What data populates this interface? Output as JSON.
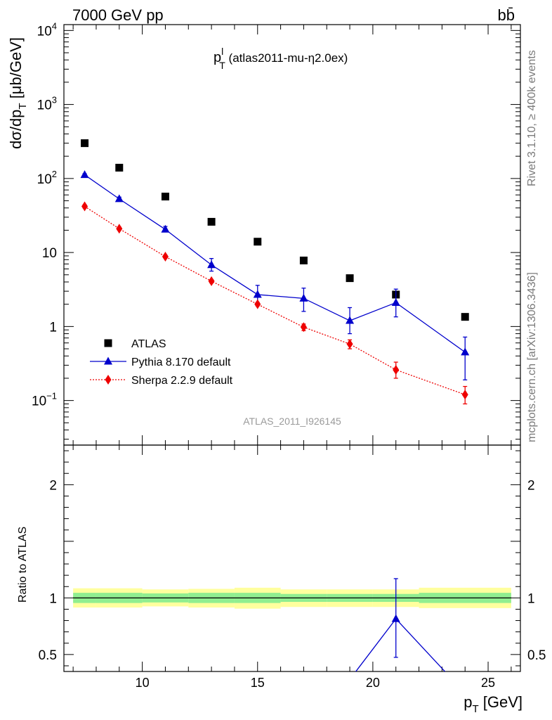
{
  "header": {
    "left": "7000 GeV pp",
    "right": "bb̄"
  },
  "side_labels": {
    "top": "Rivet 3.1.10, ≥ 400k events",
    "bottom": "mcplots.cern.ch [arXiv:1306.3436]"
  },
  "chart_data": [
    {
      "type": "line",
      "title_main": "p",
      "title_sup": "l",
      "title_sub": "T",
      "title_rest": " (atlas2011-mu-η2.0ex)",
      "ylabel_main": "dσ/dp",
      "ylabel_sub": "T",
      "ylabel_rest": " [μb/GeV]",
      "yscale": "log",
      "ylim": [
        0.025,
        12000
      ],
      "xlim": [
        6.6,
        26.4
      ],
      "ref_label": "ATLAS_2011_I926145",
      "yticks": [
        {
          "v": 0.1,
          "base": "10",
          "exp": "−1"
        },
        {
          "v": 1,
          "base": "1",
          "exp": ""
        },
        {
          "v": 10,
          "base": "10",
          "exp": ""
        },
        {
          "v": 100,
          "base": "10",
          "exp": "2"
        },
        {
          "v": 1000,
          "base": "10",
          "exp": "3"
        },
        {
          "v": 10000,
          "base": "10",
          "exp": "4"
        }
      ],
      "legend": {
        "position": "bottom-left",
        "entries": [
          "ATLAS",
          "Pythia 8.170 default",
          "Sherpa 2.2.9 default"
        ]
      },
      "series": [
        {
          "name": "ATLAS",
          "color": "#000000",
          "marker": "square",
          "style": "points",
          "x": [
            7.5,
            9,
            11,
            13,
            15,
            17,
            19,
            21,
            24
          ],
          "y": [
            300,
            140,
            57,
            26,
            14,
            7.8,
            4.5,
            2.7,
            1.35
          ]
        },
        {
          "name": "Pythia 8.170 default",
          "color": "#0000cc",
          "marker": "triangle",
          "style": "solid",
          "x": [
            7.5,
            9,
            11,
            13,
            15,
            17,
            19,
            21,
            24
          ],
          "y": [
            112,
            53,
            20.5,
            6.8,
            2.7,
            2.4,
            1.2,
            2.1,
            0.45
          ],
          "err_lo": [
            108,
            50,
            19,
            5.6,
            2.1,
            1.6,
            0.8,
            1.35,
            0.19
          ],
          "err_hi": [
            116,
            56,
            22.5,
            8.3,
            3.6,
            3.3,
            1.8,
            3.2,
            0.72
          ]
        },
        {
          "name": "Sherpa 2.2.9 default",
          "color": "#ee0000",
          "marker": "diamond",
          "style": "dotted",
          "x": [
            7.5,
            9,
            11,
            13,
            15,
            17,
            19,
            21,
            24
          ],
          "y": [
            42,
            21,
            8.8,
            4.1,
            2.0,
            0.98,
            0.58,
            0.26,
            0.12
          ],
          "err_lo": [
            40,
            20,
            8.4,
            3.9,
            1.9,
            0.88,
            0.5,
            0.2,
            0.09
          ],
          "err_hi": [
            44,
            22,
            9.2,
            4.3,
            2.1,
            1.08,
            0.66,
            0.33,
            0.155
          ]
        }
      ]
    },
    {
      "type": "line",
      "ylabel": "Ratio to ATLAS",
      "xlabel_main": "p",
      "xlabel_sub": "T",
      "xlabel_rest": " [GeV]",
      "xlim": [
        6.6,
        26.4
      ],
      "ylim": [
        0.35,
        2.35
      ],
      "xticks": [
        10,
        15,
        20,
        25
      ],
      "yticks": [
        0.5,
        1,
        2
      ],
      "bands": {
        "edges": [
          7,
          8,
          10,
          12,
          14,
          16,
          18,
          20,
          22,
          26
        ],
        "inner_lo": [
          0.955,
          0.955,
          0.96,
          0.955,
          0.955,
          0.965,
          0.965,
          0.965,
          0.955
        ],
        "inner_hi": [
          1.045,
          1.045,
          1.04,
          1.045,
          1.045,
          1.035,
          1.035,
          1.035,
          1.045
        ],
        "outer_lo": [
          0.915,
          0.915,
          0.925,
          0.915,
          0.905,
          0.92,
          0.92,
          0.92,
          0.91
        ],
        "outer_hi": [
          1.085,
          1.085,
          1.075,
          1.08,
          1.09,
          1.075,
          1.075,
          1.075,
          1.09
        ],
        "inner_color": "#90ee90",
        "outer_color": "#ffff9e"
      },
      "series": [
        {
          "name": "Pythia 8.170 default",
          "color": "#0000cc",
          "x": [
            19,
            21,
            23.4
          ],
          "y": [
            0.28,
            0.815,
            0.29
          ],
          "point_x": 21,
          "point_y": 0.815,
          "point_err": [
            0.475,
            1.17
          ]
        }
      ]
    }
  ]
}
